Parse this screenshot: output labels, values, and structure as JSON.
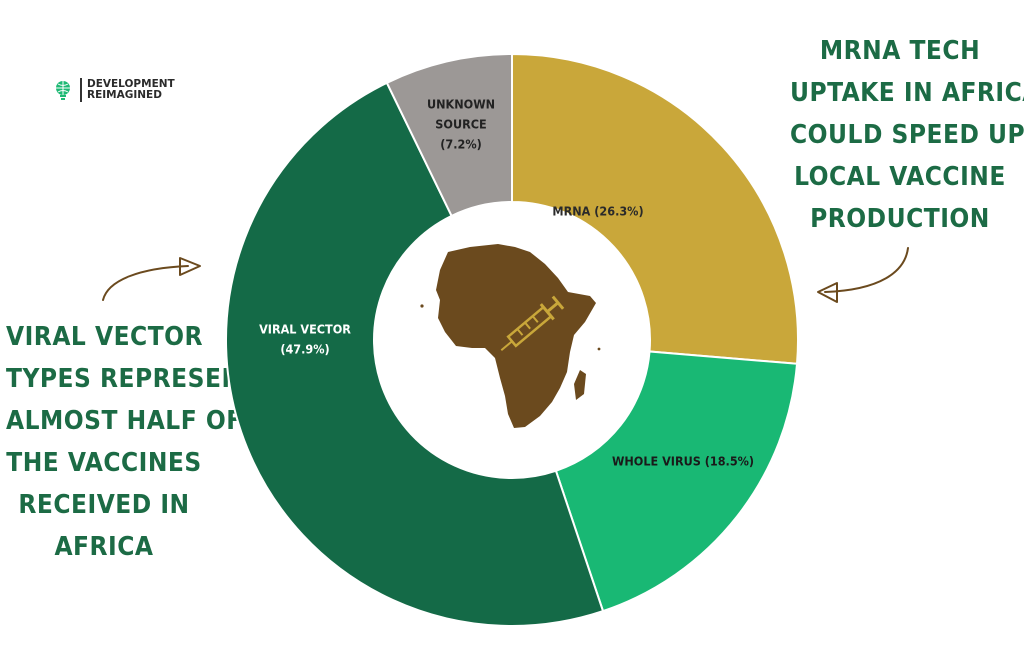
{
  "brand": {
    "line1": "DEVELOPMENT",
    "line2": "REIMAGINED"
  },
  "callouts": {
    "right": [
      "MRNA TECH",
      "UPTAKE IN AFRICA",
      "COULD SPEED UP",
      "LOCAL VACCINE",
      "PRODUCTION"
    ],
    "left": [
      "VIRAL VECTOR",
      "TYPES REPRESENT",
      "ALMOST HALF OF",
      "THE VACCINES",
      "RECEIVED IN",
      "AFRICA"
    ]
  },
  "chart_data": {
    "type": "pie",
    "donut": true,
    "categories": [
      "MRNA",
      "WHOLE VIRUS",
      "VIRAL VECTOR",
      "UNKNOWN SOURCE"
    ],
    "values": [
      26.3,
      18.5,
      47.9,
      7.2
    ],
    "labels": [
      [
        "MRNA (26.3%)"
      ],
      [
        "WHOLE VIRUS (18.5%)"
      ],
      [
        "VIRAL VECTOR",
        "(47.9%)"
      ],
      [
        "UNKNOWN",
        "SOURCE",
        "(7.2%)"
      ]
    ],
    "colors": [
      "#c9a73a",
      "#19b874",
      "#146a47",
      "#9c9896"
    ],
    "center_icon": "africa-map-syringe-icon"
  }
}
